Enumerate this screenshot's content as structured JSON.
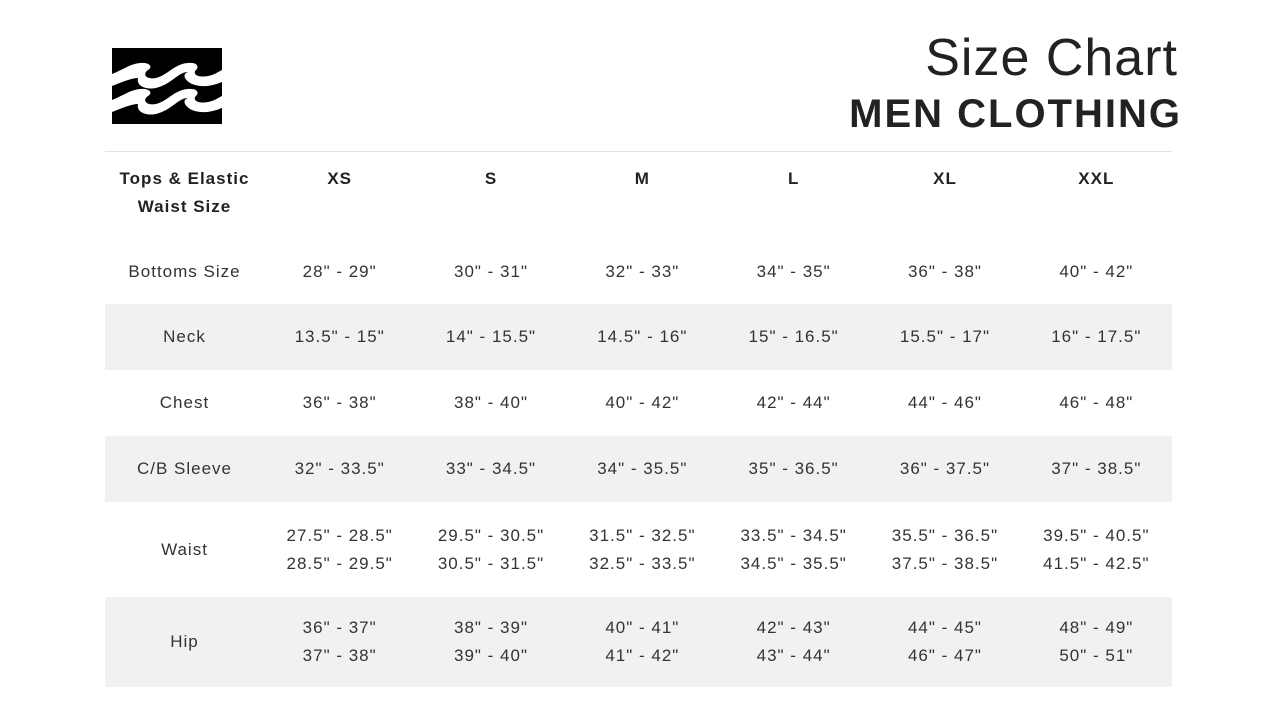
{
  "brand": {
    "logo": "billabong-wave-logo"
  },
  "header": {
    "title": "Size Chart",
    "subtitle": "MEN CLOTHING"
  },
  "table": {
    "header": [
      "Tops & Elastic Waist Size",
      "XS",
      "S",
      "M",
      "L",
      "XL",
      "XXL"
    ],
    "rows": [
      {
        "label": "Bottoms Size",
        "cells": [
          [
            "28\" - 29\""
          ],
          [
            "30\" - 31\""
          ],
          [
            "32\" - 33\""
          ],
          [
            "34\" - 35\""
          ],
          [
            "36\" - 38\""
          ],
          [
            "40\" - 42\""
          ]
        ]
      },
      {
        "label": "Neck",
        "cells": [
          [
            "13.5\" - 15\""
          ],
          [
            "14\" - 15.5\""
          ],
          [
            "14.5\" - 16\""
          ],
          [
            "15\" - 16.5\""
          ],
          [
            "15.5\" - 17\""
          ],
          [
            "16\" - 17.5\""
          ]
        ]
      },
      {
        "label": "Chest",
        "cells": [
          [
            "36\" - 38\""
          ],
          [
            "38\" - 40\""
          ],
          [
            "40\" - 42\""
          ],
          [
            "42\" - 44\""
          ],
          [
            "44\" - 46\""
          ],
          [
            "46\" - 48\""
          ]
        ]
      },
      {
        "label": "C/B Sleeve",
        "cells": [
          [
            "32\" - 33.5\""
          ],
          [
            "33\" - 34.5\""
          ],
          [
            "34\" - 35.5\""
          ],
          [
            "35\" - 36.5\""
          ],
          [
            "36\" - 37.5\""
          ],
          [
            "37\" - 38.5\""
          ]
        ]
      },
      {
        "label": "Waist",
        "cells": [
          [
            "27.5\" - 28.5\"",
            "28.5\" - 29.5\""
          ],
          [
            "29.5\" - 30.5\"",
            "30.5\" - 31.5\""
          ],
          [
            "31.5\" - 32.5\"",
            "32.5\" - 33.5\""
          ],
          [
            "33.5\" - 34.5\"",
            "34.5\" - 35.5\""
          ],
          [
            "35.5\" - 36.5\"",
            "37.5\" - 38.5\""
          ],
          [
            "39.5\" - 40.5\"",
            "41.5\" - 42.5\""
          ]
        ]
      },
      {
        "label": "Hip",
        "cells": [
          [
            "36\" - 37\"",
            "37\" - 38\""
          ],
          [
            "38\" - 39\"",
            "39\" - 40\""
          ],
          [
            "40\" - 41\"",
            "41\" - 42\""
          ],
          [
            "42\" - 43\"",
            "43\" - 44\""
          ],
          [
            "44\" - 45\"",
            "46\" - 47\""
          ],
          [
            "48\" - 49\"",
            "50\" - 51\""
          ]
        ]
      }
    ],
    "striped_color": "#f1f1f1"
  }
}
